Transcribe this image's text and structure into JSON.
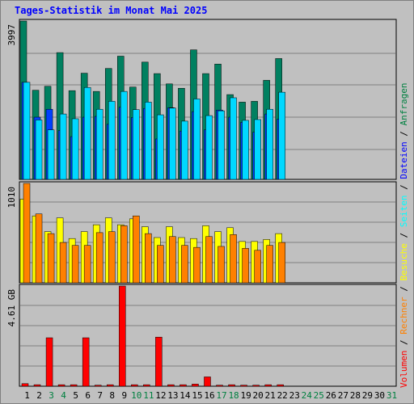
{
  "title": "Tages-Statistik im Monat Mai 2025",
  "legend": {
    "separator": " / ",
    "items": [
      {
        "label": "Volumen",
        "color": "#ff0000"
      },
      {
        "label": "Rechner",
        "color": "#ff8000"
      },
      {
        "label": "Besuche",
        "color": "#ffff00"
      },
      {
        "label": "Seiten",
        "color": "#00ffff"
      },
      {
        "label": "Dateien",
        "color": "#0000ff"
      },
      {
        "label": "Anfragen",
        "color": "#008040"
      }
    ]
  },
  "chart_data": {
    "type": "bar",
    "x": [
      "1",
      "2",
      "3",
      "4",
      "5",
      "6",
      "7",
      "8",
      "9",
      "10",
      "11",
      "12",
      "13",
      "14",
      "15",
      "16",
      "17",
      "18",
      "19",
      "20",
      "21",
      "22",
      "23",
      "24",
      "25",
      "26",
      "27",
      "28",
      "29",
      "30",
      "31"
    ],
    "x_label_colors": [
      "#000000",
      "#000000",
      "#008040",
      "#008040",
      "#000000",
      "#000000",
      "#000000",
      "#000000",
      "#000000",
      "#008040",
      "#008040",
      "#000000",
      "#000000",
      "#000000",
      "#000000",
      "#000000",
      "#008040",
      "#008040",
      "#000000",
      "#000000",
      "#000000",
      "#000000",
      "#000000",
      "#008040",
      "#008040",
      "#000000",
      "#000000",
      "#000000",
      "#000000",
      "#000000",
      "#008040"
    ],
    "panels": [
      {
        "name": "top",
        "y_max_label": "3997",
        "y_max": 3997,
        "series": [
          {
            "name": "Anfragen",
            "color": "#008060",
            "values": [
              3997,
              2250,
              2350,
              3200,
              2240,
              2680,
              2220,
              2800,
              3110,
              2330,
              2960,
              2670,
              2410,
              2300,
              3270,
              2670,
              2910,
              2140,
              1950,
              1970,
              2500,
              3050
            ]
          },
          {
            "name": "Dateien",
            "color": "#0040ff",
            "values": [
              2450,
              1570,
              1770,
              1230,
              1080,
              1570,
              1590,
              1390,
              1820,
              1560,
              1790,
              1020,
              1810,
              1220,
              1710,
              1250,
              1750,
              1570,
              1440,
              1190,
              1650,
              1520
            ]
          },
          {
            "name": "Seiten",
            "color": "#00d8ff",
            "values": [
              2450,
              1500,
              1250,
              1650,
              1530,
              2320,
              1770,
              1970,
              2220,
              1760,
              1950,
              1630,
              1800,
              1470,
              2030,
              1610,
              1730,
              2060,
              1490,
              1510,
              1770,
              2200
            ]
          }
        ]
      },
      {
        "name": "middle",
        "y_max_label": "1010",
        "y_max": 1010,
        "series": [
          {
            "name": "Besuche",
            "color": "#ffff00",
            "values": [
              850,
              680,
              520,
              660,
              450,
              520,
              590,
              660,
              590,
              650,
              570,
              460,
              570,
              460,
              450,
              580,
              520,
              560,
              420,
              420,
              440,
              500
            ]
          },
          {
            "name": "Rechner",
            "color": "#ff8000",
            "values": [
              1010,
              700,
              500,
              410,
              380,
              380,
              510,
              520,
              580,
              680,
              500,
              380,
              470,
              380,
              360,
              470,
              370,
              490,
              350,
              330,
              380,
              410
            ]
          }
        ]
      },
      {
        "name": "bottom",
        "y_max_label": "4.61 GB",
        "y_max": 4.61,
        "series": [
          {
            "name": "Volumen",
            "color": "#ff0000",
            "values": [
              0.12,
              0.07,
              2.23,
              0.07,
              0.07,
              2.23,
              0.05,
              0.07,
              4.61,
              0.07,
              0.07,
              2.26,
              0.07,
              0.07,
              0.1,
              0.43,
              0.05,
              0.07,
              0.05,
              0.05,
              0.07,
              0.07
            ]
          }
        ]
      }
    ]
  }
}
